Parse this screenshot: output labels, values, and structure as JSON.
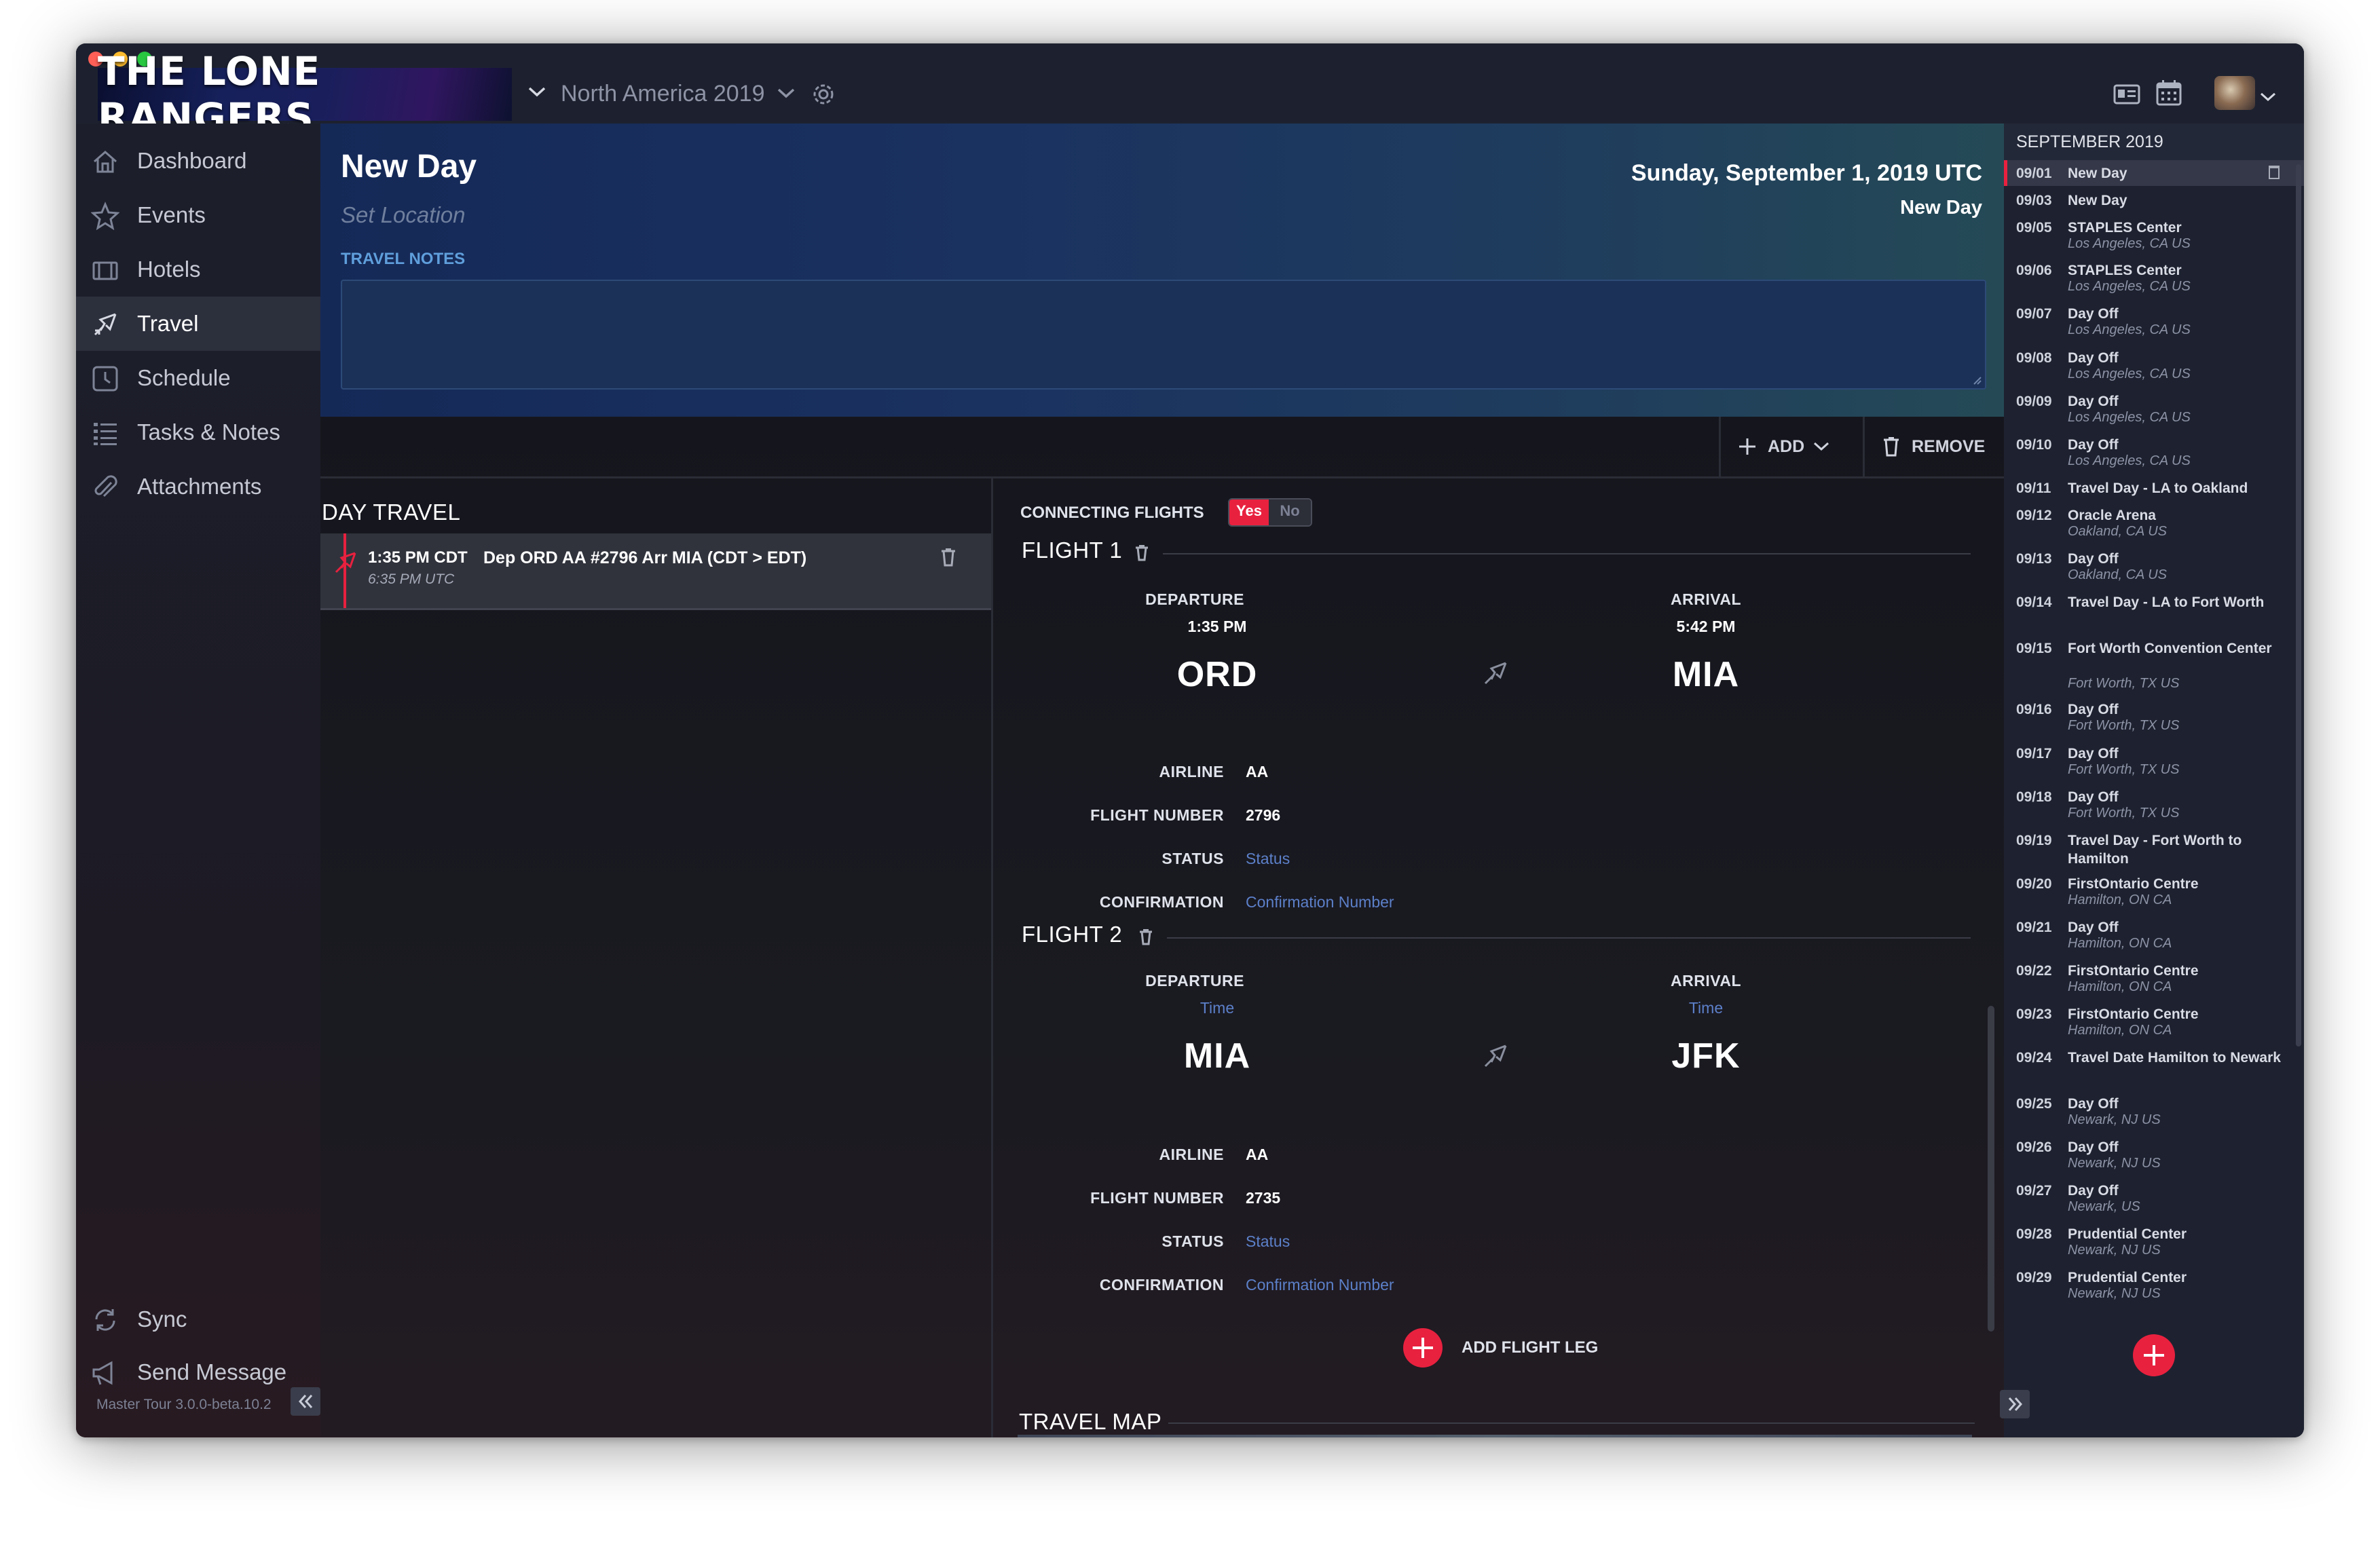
{
  "app": {
    "logo_text": "THE LONE RANGERS",
    "tour_name": "North America 2019",
    "version": "Master Tour 3.0.0-beta.10.2"
  },
  "colors": {
    "accent": "#e8213f",
    "link": "#5c80c9",
    "header_start": "#152957",
    "header_end": "#254a56"
  },
  "sidebar": {
    "items": [
      {
        "label": "Dashboard",
        "icon": "home-icon"
      },
      {
        "label": "Events",
        "icon": "star-icon"
      },
      {
        "label": "Hotels",
        "icon": "hotel-icon"
      },
      {
        "label": "Travel",
        "icon": "plane-icon",
        "active": true
      },
      {
        "label": "Schedule",
        "icon": "clock-icon"
      },
      {
        "label": "Tasks & Notes",
        "icon": "list-icon"
      },
      {
        "label": "Attachments",
        "icon": "paperclip-icon"
      }
    ],
    "sync_label": "Sync",
    "send_message_label": "Send Message"
  },
  "header": {
    "title": "New Day",
    "location_placeholder": "Set Location",
    "date": "Sunday, September 1, 2019 UTC",
    "day_name": "New Day",
    "travel_notes_label": "TRAVEL NOTES"
  },
  "toolbar": {
    "add_label": "ADD",
    "remove_label": "REMOVE"
  },
  "day_travel": {
    "title": "DAY TRAVEL",
    "items": [
      {
        "time": "1:35 PM CDT",
        "utc": "6:35 PM UTC",
        "description": "Dep ORD AA #2796 Arr MIA (CDT > EDT)"
      }
    ]
  },
  "connecting": {
    "label": "CONNECTING FLIGHTS",
    "yes": "Yes",
    "no": "No"
  },
  "field_labels": {
    "departure": "DEPARTURE",
    "arrival": "ARRIVAL",
    "airline": "AIRLINE",
    "flight_number": "FLIGHT NUMBER",
    "status": "STATUS",
    "confirmation": "CONFIRMATION"
  },
  "flights": [
    {
      "title": "FLIGHT 1",
      "dep_time": "1:35 PM",
      "arr_time": "5:42 PM",
      "dep_code": "ORD",
      "arr_code": "MIA",
      "airline": "AA",
      "flight_number": "2796",
      "status": "Status",
      "confirmation": "Confirmation Number"
    },
    {
      "title": "FLIGHT 2",
      "dep_time": "Time",
      "arr_time": "Time",
      "dep_code": "MIA",
      "arr_code": "JFK",
      "airline": "AA",
      "flight_number": "2735",
      "status": "Status",
      "confirmation": "Confirmation Number"
    }
  ],
  "add_flight_leg_label": "ADD FLIGHT LEG",
  "travel_map_label": "TRAVEL MAP",
  "calendar": {
    "month": "SEPTEMBER 2019",
    "items": [
      {
        "date": "09/01",
        "title": "New Day",
        "loc": "",
        "selected": true
      },
      {
        "date": "09/03",
        "title": "New Day",
        "loc": ""
      },
      {
        "date": "09/05",
        "title": "STAPLES Center",
        "loc": "Los Angeles, CA US"
      },
      {
        "date": "09/06",
        "title": "STAPLES Center",
        "loc": "Los Angeles, CA US"
      },
      {
        "date": "09/07",
        "title": "Day Off",
        "loc": "Los Angeles, CA US"
      },
      {
        "date": "09/08",
        "title": "Day Off",
        "loc": "Los Angeles, CA US"
      },
      {
        "date": "09/09",
        "title": "Day Off",
        "loc": "Los Angeles, CA US"
      },
      {
        "date": "09/10",
        "title": "Day Off",
        "loc": "Los Angeles, CA US"
      },
      {
        "date": "09/11",
        "title": "Travel Day - LA to Oakland",
        "loc": ""
      },
      {
        "date": "09/12",
        "title": "Oracle Arena",
        "loc": "Oakland, CA US"
      },
      {
        "date": "09/13",
        "title": "Day Off",
        "loc": "Oakland, CA US"
      },
      {
        "date": "09/14",
        "title": "Travel Day - LA to Fort Worth",
        "loc": ""
      },
      {
        "date": "09/15",
        "title": "Fort Worth Convention Center",
        "loc": "Fort Worth, TX US"
      },
      {
        "date": "09/16",
        "title": "Day Off",
        "loc": "Fort Worth, TX US"
      },
      {
        "date": "09/17",
        "title": "Day Off",
        "loc": "Fort Worth, TX US"
      },
      {
        "date": "09/18",
        "title": "Day Off",
        "loc": "Fort Worth, TX US"
      },
      {
        "date": "09/19",
        "title": "Travel Day - Fort Worth to Hamilton",
        "loc": ""
      },
      {
        "date": "09/20",
        "title": "FirstOntario Centre",
        "loc": "Hamilton, ON CA"
      },
      {
        "date": "09/21",
        "title": "Day Off",
        "loc": "Hamilton, ON CA"
      },
      {
        "date": "09/22",
        "title": "FirstOntario Centre",
        "loc": "Hamilton, ON CA"
      },
      {
        "date": "09/23",
        "title": "FirstOntario Centre",
        "loc": "Hamilton, ON CA"
      },
      {
        "date": "09/24",
        "title": "Travel Date Hamilton to Newark",
        "loc": ""
      },
      {
        "date": "09/25",
        "title": "Day Off",
        "loc": "Newark, NJ US"
      },
      {
        "date": "09/26",
        "title": "Day Off",
        "loc": "Newark, NJ US"
      },
      {
        "date": "09/27",
        "title": "Day Off",
        "loc": "Newark, US"
      },
      {
        "date": "09/28",
        "title": "Prudential Center",
        "loc": "Newark, NJ US"
      },
      {
        "date": "09/29",
        "title": "Prudential Center",
        "loc": "Newark, NJ US"
      }
    ]
  }
}
